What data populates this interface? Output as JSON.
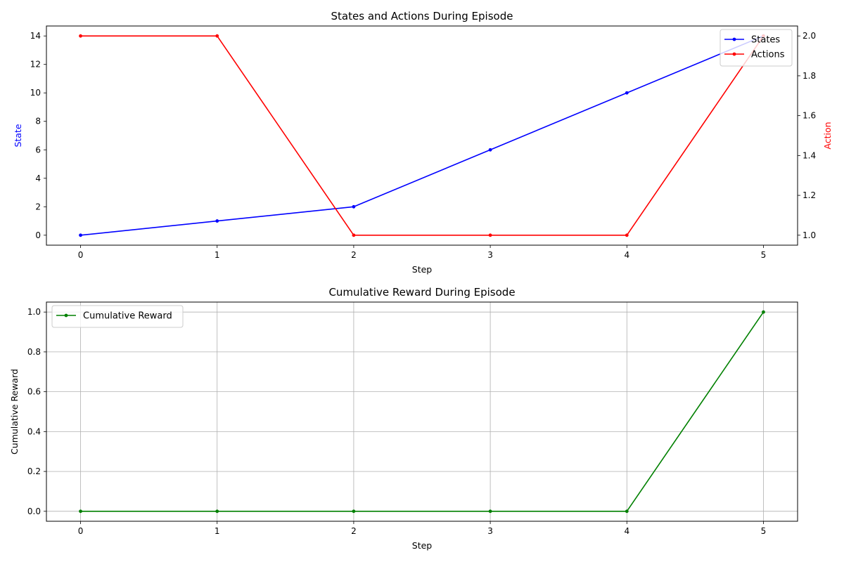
{
  "chart_data": [
    {
      "type": "line",
      "title": "States and Actions During Episode",
      "xlabel": "Step",
      "ylabel": "State",
      "ylabel_right": "Action",
      "x": [
        0,
        1,
        2,
        3,
        4,
        5
      ],
      "xlim": [
        -0.25,
        5.25
      ],
      "ylim": [
        -0.7,
        14.7
      ],
      "ylim_right": [
        0.95,
        2.05
      ],
      "yticks": [
        0,
        2,
        4,
        6,
        8,
        10,
        12,
        14
      ],
      "yticks_right": [
        1.0,
        1.2,
        1.4,
        1.6,
        1.8,
        2.0
      ],
      "grid": false,
      "legend_position": "top-right",
      "series": [
        {
          "name": "States",
          "axis": "left",
          "color": "#0000ff",
          "values": [
            0,
            1,
            2,
            6,
            10,
            14
          ]
        },
        {
          "name": "Actions",
          "axis": "right",
          "color": "#ff0000",
          "values": [
            2,
            2,
            1,
            1,
            1,
            2
          ]
        }
      ],
      "ylabel_color": "#0000ff",
      "ylabel_right_color": "#ff0000"
    },
    {
      "type": "line",
      "title": "Cumulative Reward During Episode",
      "xlabel": "Step",
      "ylabel": "Cumulative Reward",
      "x": [
        0,
        1,
        2,
        3,
        4,
        5
      ],
      "xlim": [
        -0.25,
        5.25
      ],
      "ylim": [
        -0.05,
        1.05
      ],
      "yticks": [
        0.0,
        0.2,
        0.4,
        0.6,
        0.8,
        1.0
      ],
      "grid": true,
      "legend_position": "top-left",
      "series": [
        {
          "name": "Cumulative Reward",
          "axis": "left",
          "color": "#008000",
          "values": [
            0,
            0,
            0,
            0,
            0,
            1
          ]
        }
      ]
    }
  ]
}
